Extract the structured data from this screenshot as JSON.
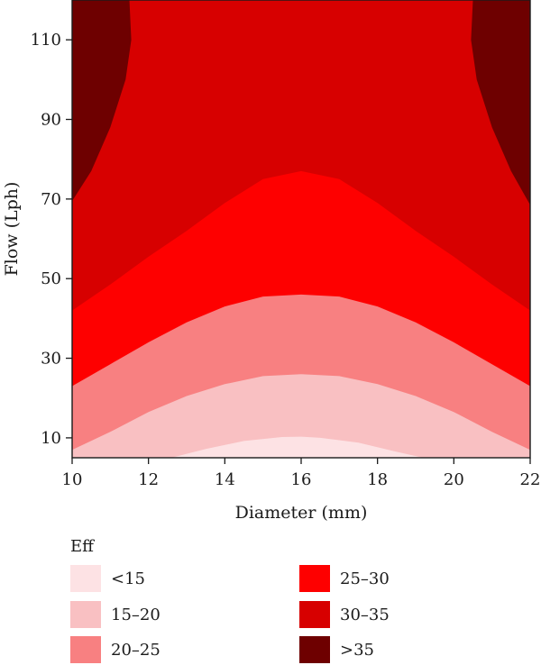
{
  "chart_data": {
    "type": "heatmap",
    "title": "",
    "xlabel": "Diameter (mm)",
    "ylabel": "Flow (Lph)",
    "xlim": [
      10,
      22
    ],
    "ylim": [
      5,
      120
    ],
    "x_ticks": [
      10,
      12,
      14,
      16,
      18,
      20,
      22
    ],
    "y_ticks": [
      10,
      30,
      50,
      70,
      90,
      110
    ],
    "grid": false,
    "legend": {
      "title": "Eff",
      "placement": "bottom"
    },
    "bands": [
      {
        "label": "<15",
        "range": [
          null,
          15
        ],
        "color": "#fde2e4"
      },
      {
        "label": "15–20",
        "range": [
          15,
          20
        ],
        "color": "#f9c0c2"
      },
      {
        "label": "20–25",
        "range": [
          20,
          25
        ],
        "color": "#f88081"
      },
      {
        "label": "25–30",
        "range": [
          25,
          30
        ],
        "color": "#fe0000"
      },
      {
        "label": "30–35",
        "range": [
          30,
          35
        ],
        "color": "#d70000"
      },
      {
        "label": ">35",
        "range": [
          35,
          null
        ],
        "color": "#6e0000"
      }
    ],
    "contours": [
      {
        "level": 15,
        "points": [
          [
            12.6,
            5
          ],
          [
            13.5,
            7.2
          ],
          [
            14.5,
            9.2
          ],
          [
            15.5,
            10.2
          ],
          [
            16.0,
            10.3
          ],
          [
            16.5,
            10.0
          ],
          [
            17.5,
            8.8
          ],
          [
            18.5,
            6.5
          ],
          [
            19.2,
            5
          ]
        ]
      },
      {
        "level": 20,
        "points": [
          [
            10,
            7.0
          ],
          [
            11,
            11.5
          ],
          [
            12,
            16.5
          ],
          [
            13,
            20.5
          ],
          [
            14,
            23.5
          ],
          [
            15,
            25.5
          ],
          [
            16,
            26.0
          ],
          [
            17,
            25.5
          ],
          [
            18,
            23.5
          ],
          [
            19,
            20.5
          ],
          [
            20,
            16.5
          ],
          [
            21,
            11.5
          ],
          [
            22,
            7.0
          ]
        ]
      },
      {
        "level": 25,
        "points": [
          [
            10,
            23.0
          ],
          [
            11,
            28.5
          ],
          [
            12,
            34.0
          ],
          [
            13,
            39.0
          ],
          [
            14,
            43.0
          ],
          [
            15,
            45.5
          ],
          [
            16,
            46.0
          ],
          [
            17,
            45.5
          ],
          [
            18,
            43.0
          ],
          [
            19,
            39.0
          ],
          [
            20,
            34.0
          ],
          [
            21,
            28.5
          ],
          [
            22,
            23.0
          ]
        ]
      },
      {
        "level": 30,
        "points": [
          [
            10,
            42.0
          ],
          [
            11,
            48.5
          ],
          [
            12,
            55.5
          ],
          [
            13,
            62.0
          ],
          [
            14,
            69.0
          ],
          [
            15,
            75.0
          ],
          [
            16,
            77.0
          ],
          [
            17,
            75.0
          ],
          [
            18,
            69.0
          ],
          [
            19,
            62.0
          ],
          [
            20,
            55.5
          ],
          [
            21,
            48.5
          ],
          [
            22,
            42.0
          ]
        ]
      },
      {
        "level": 35,
        "side": "left",
        "points": [
          [
            10,
            69.5
          ],
          [
            10.5,
            77.0
          ],
          [
            11.0,
            88.0
          ],
          [
            11.4,
            100.0
          ],
          [
            11.55,
            110.0
          ],
          [
            11.5,
            120.0
          ]
        ]
      },
      {
        "level": 35,
        "side": "right",
        "points": [
          [
            22,
            68.5
          ],
          [
            21.5,
            77.0
          ],
          [
            21.0,
            88.0
          ],
          [
            20.6,
            100.0
          ],
          [
            20.45,
            110.0
          ],
          [
            20.5,
            120.0
          ]
        ]
      }
    ]
  }
}
